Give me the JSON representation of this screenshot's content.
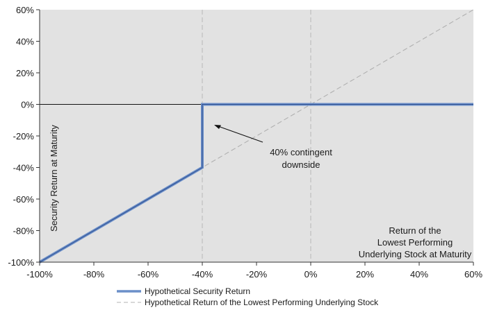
{
  "chart_data": {
    "type": "line",
    "xlim": [
      -100,
      60
    ],
    "ylim": [
      -100,
      60
    ],
    "x_ticks": [
      "-100%",
      "-80%",
      "-60%",
      "-40%",
      "-20%",
      "0%",
      "20%",
      "40%",
      "60%"
    ],
    "y_ticks": [
      "60%",
      "40%",
      "20%",
      "0%",
      "-20%",
      "-40%",
      "-60%",
      "-80%",
      "-100%"
    ],
    "ylabel": "Security Return at Maturity",
    "xlabel": [
      "Return of the",
      "Lowest Performing",
      "Underlying Stock at Maturity"
    ],
    "annotation": [
      "40% contingent",
      "downside"
    ],
    "grid": false,
    "series": [
      {
        "name": "Hypothetical Security Return",
        "color": "#6b8fc9",
        "x": [
          -100,
          -40,
          -40,
          60
        ],
        "y": [
          -100,
          -40,
          0,
          0
        ]
      },
      {
        "name": "Hypothetical Return of the Lowest Performing Underlying Stock",
        "color": "#b0b0b0",
        "style": "dashed",
        "x": [
          -100,
          60
        ],
        "y": [
          -100,
          60
        ]
      }
    ],
    "reference_lines": [
      {
        "x": -40,
        "style": "dashed"
      },
      {
        "x": 0,
        "style": "dashed"
      },
      {
        "y": 0,
        "style": "solid"
      }
    ],
    "plot_background": "#e2e2e2"
  }
}
